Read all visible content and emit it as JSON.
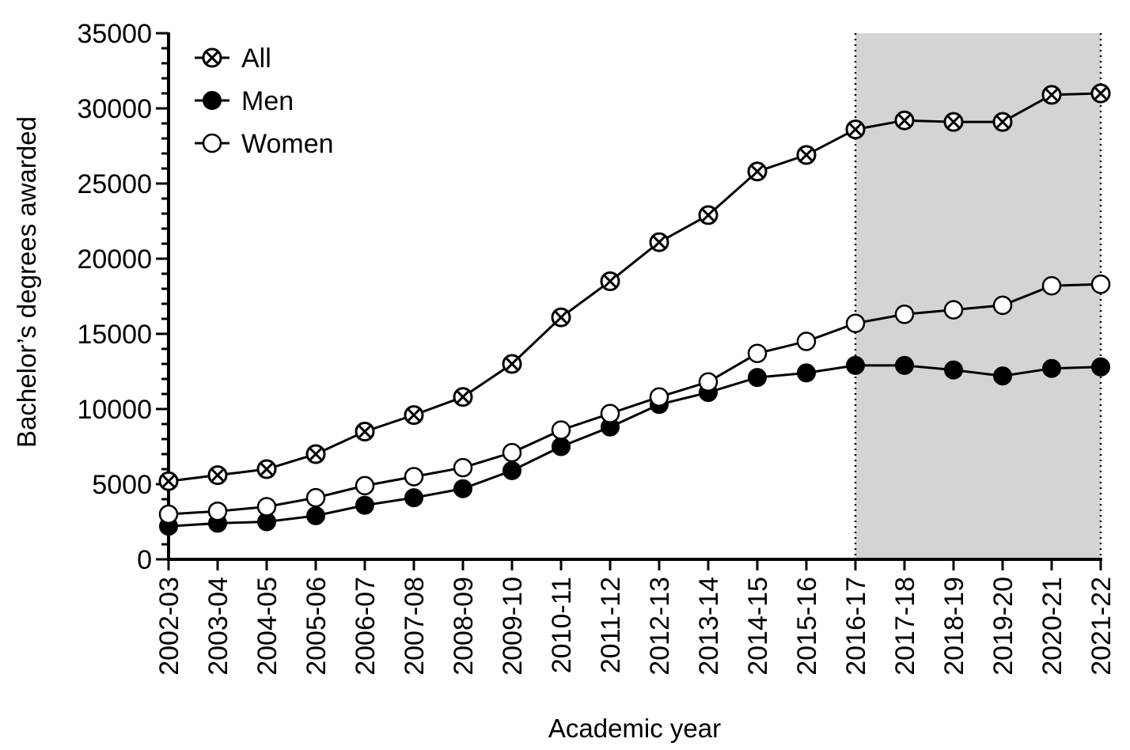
{
  "chart_data": {
    "type": "line",
    "title": "",
    "xlabel": "Academic year",
    "ylabel": "Bachelor’s degrees awarded",
    "ylim": [
      0,
      35000
    ],
    "yticks": [
      0,
      5000,
      10000,
      15000,
      20000,
      25000,
      30000,
      35000
    ],
    "grid": false,
    "legend": "top-left",
    "shaded_region": {
      "from": "2016-17",
      "to": "2021-22",
      "color": "#d4d4d4"
    },
    "categories": [
      "2002-03",
      "2003-04",
      "2004-05",
      "2005-06",
      "2006-07",
      "2007-08",
      "2008-09",
      "2009-10",
      "2010-11",
      "2011-12",
      "2012-13",
      "2013-14",
      "2014-15",
      "2015-16",
      "2016-17",
      "2017-18",
      "2018-19",
      "2019-20",
      "2020-21",
      "2021-22"
    ],
    "series": [
      {
        "name": "All",
        "marker": "circle-x",
        "values": [
          5200,
          5600,
          6000,
          7000,
          8500,
          9600,
          10800,
          13000,
          16100,
          18500,
          21100,
          22900,
          25800,
          26900,
          28600,
          29200,
          29100,
          29100,
          30900,
          31000
        ]
      },
      {
        "name": "Men",
        "marker": "filled-circle",
        "values": [
          2200,
          2400,
          2500,
          2900,
          3600,
          4100,
          4700,
          5900,
          7500,
          8800,
          10300,
          11100,
          12100,
          12400,
          12900,
          12900,
          12600,
          12200,
          12700,
          12800
        ]
      },
      {
        "name": "Women",
        "marker": "open-circle",
        "values": [
          3000,
          3200,
          3500,
          4100,
          4900,
          5500,
          6100,
          7100,
          8600,
          9700,
          10800,
          11800,
          13700,
          14500,
          15700,
          16300,
          16600,
          16900,
          18200,
          18300
        ]
      }
    ]
  }
}
